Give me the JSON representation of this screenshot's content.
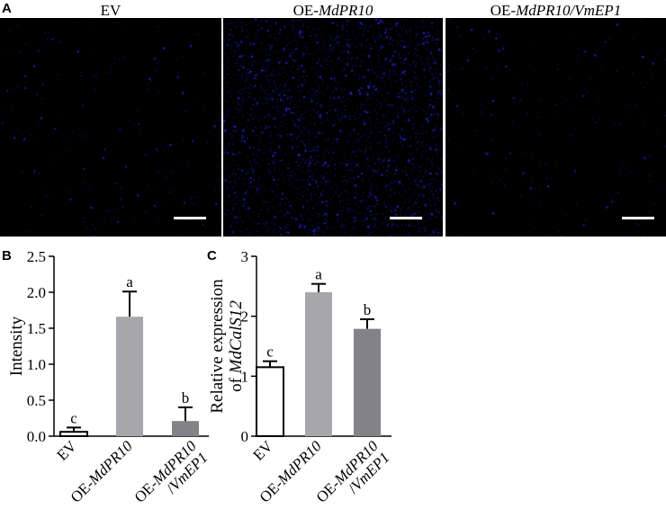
{
  "panel_labels": {
    "a": "A",
    "b": "B",
    "c": "C"
  },
  "micrographs": [
    {
      "title_prefix": "",
      "title_italic": "",
      "title_suffix": "EV",
      "dot_color": "#2a2ae8",
      "density": "low"
    },
    {
      "title_prefix": "OE-",
      "title_italic": "MdPR10",
      "title_suffix": "",
      "dot_color": "#2a2ae8",
      "density": "high"
    },
    {
      "title_prefix": "OE-",
      "title_italic": "MdPR10/VmEP1",
      "title_suffix": "",
      "dot_color": "#2a2ae8",
      "density": "low"
    }
  ],
  "chart_data": [
    {
      "panel": "B",
      "type": "bar",
      "ylabel": "Intensity",
      "ylim": [
        0,
        2.5
      ],
      "yticks": [
        "0.0",
        "0.5",
        "1.0",
        "1.5",
        "2.0",
        "2.5"
      ],
      "ytick_values": [
        0,
        0.5,
        1.0,
        1.5,
        2.0,
        2.5
      ],
      "categories": [
        "EV",
        "OE-MdPR10",
        "OE-MdPR10/VmEP1"
      ],
      "category_lines": [
        [
          "EV"
        ],
        [
          "OE-MdPR10"
        ],
        [
          "OE-MdPR10",
          "/VmEP1"
        ]
      ],
      "values": [
        0.06,
        1.66,
        0.21
      ],
      "errors": [
        0.06,
        0.35,
        0.19
      ],
      "significance": [
        "c",
        "a",
        "b"
      ],
      "bar_fill": [
        "#ffffff",
        "#a6a6ab",
        "#828287"
      ],
      "grid": false
    },
    {
      "panel": "C",
      "type": "bar",
      "ylabel_line1": "Relative expression",
      "ylabel_line2_prefix": "of ",
      "ylabel_line2_italic": "MdCalS12",
      "ylim": [
        0,
        3
      ],
      "yticks": [
        "0",
        "1",
        "2",
        "3"
      ],
      "ytick_values": [
        0,
        1,
        2,
        3
      ],
      "categories": [
        "EV",
        "OE-MdPR10",
        "OE-MdPR10/VmEP1"
      ],
      "category_lines": [
        [
          "EV"
        ],
        [
          "OE-MdPR10"
        ],
        [
          "OE-MdPR10",
          "/VmEP1"
        ]
      ],
      "values": [
        1.15,
        2.4,
        1.79
      ],
      "errors": [
        0.1,
        0.14,
        0.16
      ],
      "significance": [
        "c",
        "a",
        "b"
      ],
      "bar_fill": [
        "#ffffff",
        "#a6a6ab",
        "#828287"
      ],
      "grid": false
    }
  ]
}
